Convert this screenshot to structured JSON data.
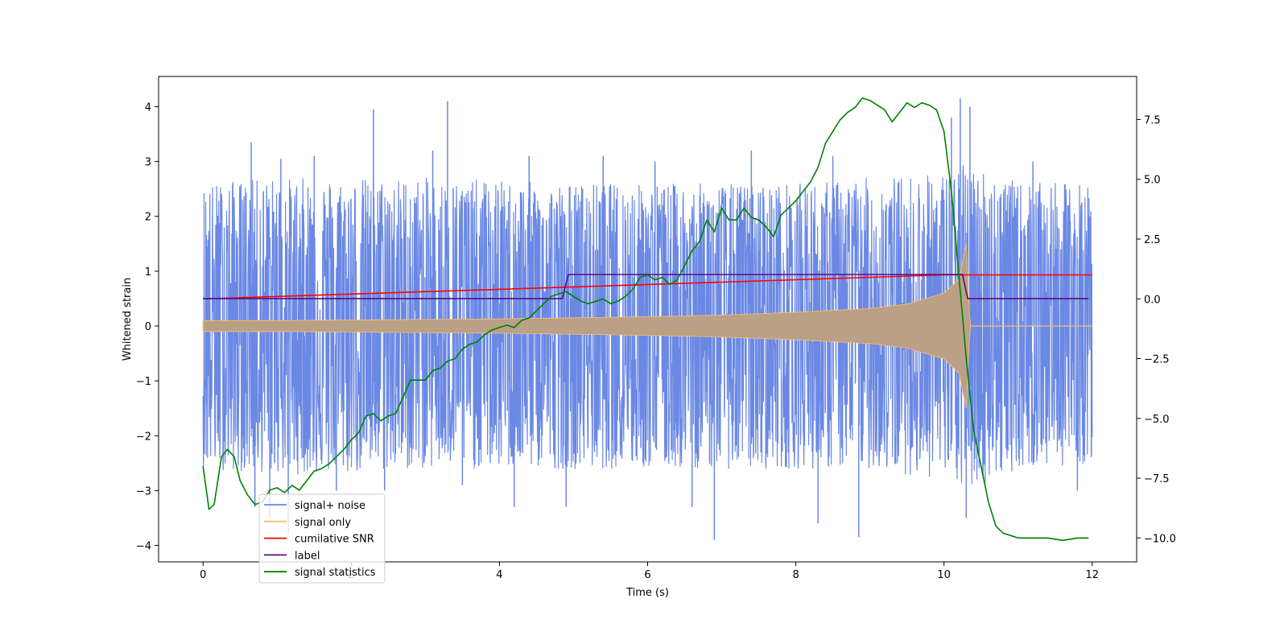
{
  "chart_data": {
    "type": "line",
    "title": "",
    "xlabel": "Time (s)",
    "ylabel": "Whitened strain",
    "y2label": "",
    "xlim": [
      -0.6,
      12.6
    ],
    "ylim": [
      -4.3,
      4.55
    ],
    "y2lim": [
      -11.0,
      9.3
    ],
    "xticks": [
      "0",
      "2",
      "4",
      "6",
      "8",
      "10",
      "12"
    ],
    "yticks": [
      "4",
      "3",
      "2",
      "1",
      "0",
      "−1",
      "−2",
      "−3",
      "−4"
    ],
    "y2ticks": [
      "7.5",
      "5.0",
      "2.5",
      "0.0",
      "−2.5",
      "−5.0",
      "−7.5",
      "−10.0"
    ],
    "grid": false,
    "legend_position": "lower-left",
    "series": [
      {
        "name": "signal+ noise",
        "axis": "left",
        "color": "#6a88e4",
        "kind": "noise-envelope",
        "t_start": 0,
        "t_end": 12,
        "upper_envelope": {
          "t": [
            0,
            1,
            2,
            3,
            4,
            5,
            6,
            7,
            8,
            9,
            10,
            10.3,
            11,
            12
          ],
          "v": [
            2.6,
            2.7,
            2.7,
            2.7,
            2.65,
            2.6,
            2.6,
            2.6,
            2.6,
            2.7,
            2.8,
            3.0,
            2.6,
            2.6
          ]
        },
        "lower_envelope": {
          "t": [
            0,
            1,
            2,
            3,
            4,
            5,
            6,
            7,
            8,
            9,
            10,
            10.3,
            11,
            12
          ],
          "v": [
            -2.6,
            -2.7,
            -2.7,
            -2.6,
            -2.6,
            -2.6,
            -2.6,
            -2.6,
            -2.6,
            -2.6,
            -2.8,
            -3.0,
            -2.6,
            -2.5
          ]
        },
        "peaks": [
          {
            "t": 0.4,
            "v": 2.6
          },
          {
            "t": 0.65,
            "v": 3.35
          },
          {
            "t": 0.7,
            "v": -3.3
          },
          {
            "t": 0.9,
            "v": -3.5
          },
          {
            "t": 1.05,
            "v": 3.05
          },
          {
            "t": 1.15,
            "v": -3.8
          },
          {
            "t": 1.5,
            "v": 3.1
          },
          {
            "t": 1.8,
            "v": -3.0
          },
          {
            "t": 2.3,
            "v": 3.95
          },
          {
            "t": 2.45,
            "v": -3.0
          },
          {
            "t": 3.1,
            "v": 3.2
          },
          {
            "t": 3.3,
            "v": 4.1
          },
          {
            "t": 3.5,
            "v": -2.9
          },
          {
            "t": 4.2,
            "v": -3.3
          },
          {
            "t": 4.4,
            "v": 3.1
          },
          {
            "t": 4.9,
            "v": -3.3
          },
          {
            "t": 5.4,
            "v": 3.1
          },
          {
            "t": 6.1,
            "v": 3.0
          },
          {
            "t": 6.6,
            "v": -3.3
          },
          {
            "t": 6.9,
            "v": -3.9
          },
          {
            "t": 7.4,
            "v": 3.2
          },
          {
            "t": 8.3,
            "v": -3.6
          },
          {
            "t": 8.5,
            "v": 3.1
          },
          {
            "t": 8.85,
            "v": -3.85
          },
          {
            "t": 10.1,
            "v": 3.8
          },
          {
            "t": 10.22,
            "v": 4.15
          },
          {
            "t": 10.3,
            "v": -3.5
          },
          {
            "t": 10.35,
            "v": 4.0
          },
          {
            "t": 11.2,
            "v": 3.0
          },
          {
            "t": 11.8,
            "v": -3.0
          }
        ]
      },
      {
        "name": "signal only",
        "axis": "left",
        "color": "#fdbf6f",
        "fill_color": "#baa085",
        "kind": "chirp-envelope",
        "envelope": {
          "t": [
            0,
            1,
            2,
            3,
            4,
            5,
            6,
            7,
            8,
            9,
            9.5,
            10,
            10.2,
            10.3,
            10.35,
            12
          ],
          "v": [
            0.1,
            0.1,
            0.11,
            0.12,
            0.13,
            0.15,
            0.17,
            0.2,
            0.25,
            0.32,
            0.4,
            0.6,
            0.85,
            1.5,
            0.0,
            0.0
          ]
        }
      },
      {
        "name": "cumilative SNR",
        "axis": "right",
        "color": "#ff0000",
        "x": [
          0,
          1,
          2,
          3,
          4,
          5,
          6,
          7,
          8,
          9,
          9.5,
          10,
          10.3,
          12
        ],
        "y": [
          0.0,
          0.1,
          0.2,
          0.3,
          0.4,
          0.5,
          0.6,
          0.7,
          0.8,
          0.9,
          0.95,
          1.0,
          1.0,
          1.0
        ]
      },
      {
        "name": "label",
        "axis": "left",
        "color": "#5b0d82",
        "x": [
          0,
          4.85,
          4.93,
          10.25,
          10.32,
          11.95
        ],
        "y": [
          0.5,
          0.5,
          0.94,
          0.94,
          0.5,
          0.5
        ]
      },
      {
        "name": "signal statistics",
        "axis": "right",
        "color": "#008000",
        "x": [
          0,
          0.08,
          0.15,
          0.25,
          0.33,
          0.42,
          0.5,
          0.6,
          0.7,
          0.8,
          0.9,
          1.0,
          1.1,
          1.2,
          1.3,
          1.4,
          1.5,
          1.6,
          1.7,
          1.8,
          1.9,
          2.0,
          2.1,
          2.2,
          2.3,
          2.4,
          2.5,
          2.6,
          2.7,
          2.8,
          2.9,
          3.0,
          3.1,
          3.2,
          3.3,
          3.4,
          3.5,
          3.6,
          3.7,
          3.8,
          3.9,
          4.0,
          4.1,
          4.2,
          4.3,
          4.4,
          4.5,
          4.6,
          4.7,
          4.8,
          4.9,
          5.0,
          5.1,
          5.2,
          5.3,
          5.4,
          5.5,
          5.6,
          5.7,
          5.8,
          5.9,
          6.0,
          6.1,
          6.2,
          6.3,
          6.4,
          6.5,
          6.6,
          6.7,
          6.8,
          6.9,
          7.0,
          7.1,
          7.2,
          7.3,
          7.4,
          7.5,
          7.6,
          7.7,
          7.8,
          7.9,
          8.0,
          8.1,
          8.2,
          8.3,
          8.4,
          8.5,
          8.6,
          8.7,
          8.8,
          8.9,
          9.0,
          9.1,
          9.2,
          9.3,
          9.4,
          9.5,
          9.6,
          9.7,
          9.8,
          9.9,
          10.0,
          10.1,
          10.2,
          10.3,
          10.4,
          10.5,
          10.6,
          10.7,
          10.8,
          10.9,
          11.0,
          11.2,
          11.4,
          11.6,
          11.8,
          11.95
        ],
        "y": [
          -7.0,
          -8.8,
          -8.6,
          -6.6,
          -6.3,
          -6.6,
          -7.6,
          -8.2,
          -8.6,
          -8.5,
          -8.0,
          -7.9,
          -8.1,
          -7.8,
          -8.0,
          -7.6,
          -7.2,
          -7.1,
          -6.9,
          -6.6,
          -6.3,
          -5.9,
          -5.6,
          -4.9,
          -4.8,
          -5.1,
          -4.9,
          -4.8,
          -4.1,
          -3.4,
          -3.4,
          -3.4,
          -3.0,
          -2.9,
          -2.6,
          -2.5,
          -2.1,
          -1.9,
          -1.8,
          -1.5,
          -1.3,
          -1.2,
          -1.1,
          -1.2,
          -0.9,
          -0.8,
          -0.5,
          -0.2,
          0.1,
          0.2,
          0.3,
          0.1,
          -0.1,
          -0.2,
          -0.1,
          0.0,
          -0.2,
          -0.1,
          0.1,
          0.4,
          0.9,
          1.0,
          0.8,
          0.9,
          0.6,
          0.8,
          1.4,
          2.0,
          2.4,
          3.3,
          2.8,
          3.8,
          3.3,
          3.3,
          3.8,
          3.4,
          3.3,
          3.0,
          2.6,
          3.5,
          3.8,
          4.1,
          4.5,
          4.9,
          5.5,
          6.5,
          7.0,
          7.5,
          7.8,
          8.0,
          8.4,
          8.3,
          8.1,
          7.9,
          7.4,
          7.8,
          8.2,
          8.0,
          8.2,
          8.1,
          7.9,
          7.0,
          4.5,
          1.0,
          -2.5,
          -5.5,
          -7.0,
          -8.5,
          -9.5,
          -9.8,
          -9.9,
          -10.0,
          -10.0,
          -10.0,
          -10.1,
          -10.0,
          -10.0
        ]
      }
    ]
  }
}
